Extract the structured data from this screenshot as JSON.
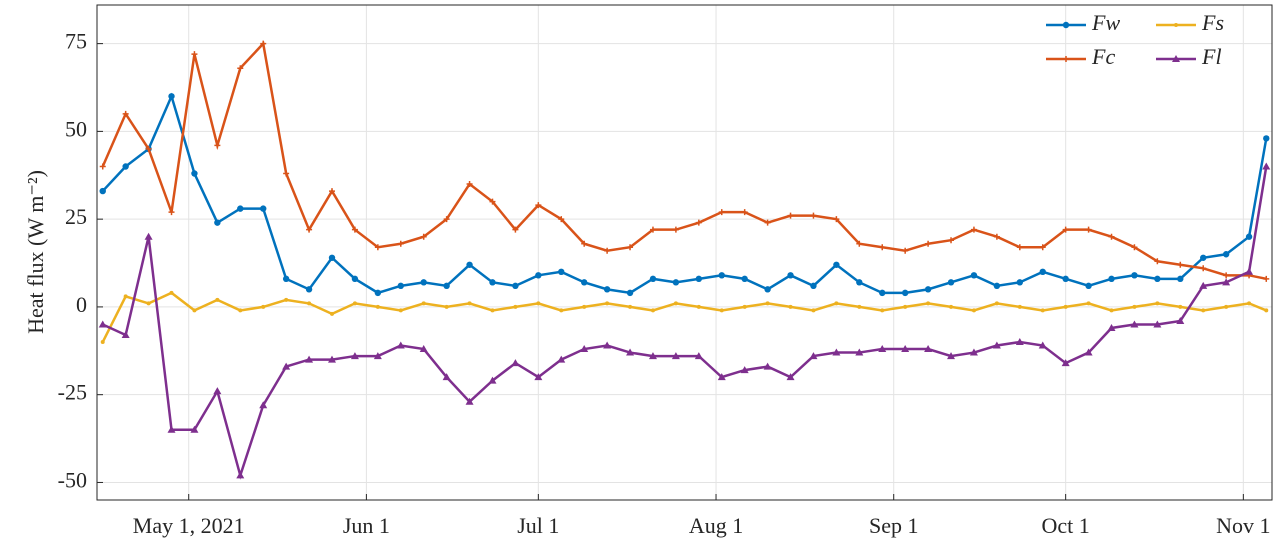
{
  "chart_data": {
    "type": "line",
    "y_label": "Heat flux (W m⁻²)",
    "x": [
      "2021-04-16",
      "2021-04-20",
      "2021-04-24",
      "2021-04-28",
      "2021-05-02",
      "2021-05-06",
      "2021-05-10",
      "2021-05-14",
      "2021-05-18",
      "2021-05-22",
      "2021-05-26",
      "2021-05-30",
      "2021-06-03",
      "2021-06-07",
      "2021-06-11",
      "2021-06-15",
      "2021-06-19",
      "2021-06-23",
      "2021-06-27",
      "2021-07-01",
      "2021-07-05",
      "2021-07-09",
      "2021-07-13",
      "2021-07-17",
      "2021-07-21",
      "2021-07-25",
      "2021-07-29",
      "2021-08-02",
      "2021-08-06",
      "2021-08-10",
      "2021-08-14",
      "2021-08-18",
      "2021-08-22",
      "2021-08-26",
      "2021-08-30",
      "2021-09-03",
      "2021-09-07",
      "2021-09-11",
      "2021-09-15",
      "2021-09-19",
      "2021-09-23",
      "2021-09-27",
      "2021-10-01",
      "2021-10-05",
      "2021-10-09",
      "2021-10-13",
      "2021-10-17",
      "2021-10-21",
      "2021-10-25",
      "2021-10-29",
      "2021-11-02",
      "2021-11-05"
    ],
    "series": [
      {
        "name": "Fw",
        "color": "#0072bd",
        "marker": "circle",
        "values": [
          33,
          40,
          45,
          60,
          38,
          24,
          28,
          28,
          8,
          5,
          14,
          8,
          4,
          6,
          7,
          6,
          12,
          7,
          6,
          9,
          10,
          7,
          5,
          4,
          8,
          7,
          8,
          9,
          8,
          5,
          9,
          6,
          12,
          7,
          4,
          4,
          5,
          7,
          9,
          6,
          7,
          10,
          8,
          6,
          8,
          9,
          8,
          8,
          14,
          15,
          20,
          48
        ]
      },
      {
        "name": "Fs",
        "color": "#edb120",
        "marker": "dot",
        "values": [
          -10,
          3,
          1,
          4,
          -1,
          2,
          -1,
          0,
          2,
          1,
          -2,
          1,
          0,
          -1,
          1,
          0,
          1,
          -1,
          0,
          1,
          -1,
          0,
          1,
          0,
          -1,
          1,
          0,
          -1,
          0,
          1,
          0,
          -1,
          1,
          0,
          -1,
          0,
          1,
          0,
          -1,
          1,
          0,
          -1,
          0,
          1,
          -1,
          0,
          1,
          0,
          -1,
          0,
          1,
          -1
        ]
      },
      {
        "name": "Fc",
        "color": "#d95319",
        "marker": "plus",
        "values": [
          40,
          55,
          45,
          27,
          72,
          46,
          68,
          75,
          38,
          22,
          33,
          22,
          17,
          18,
          20,
          25,
          35,
          30,
          22,
          29,
          25,
          18,
          16,
          17,
          22,
          22,
          24,
          27,
          27,
          24,
          26,
          26,
          25,
          18,
          17,
          16,
          18,
          19,
          22,
          20,
          17,
          17,
          22,
          22,
          20,
          17,
          13,
          12,
          11,
          9,
          9,
          8
        ]
      },
      {
        "name": "Fl",
        "color": "#7e2f8e",
        "marker": "triangle",
        "values": [
          -5,
          -8,
          20,
          -35,
          -35,
          -24,
          -48,
          -28,
          -17,
          -15,
          -15,
          -14,
          -14,
          -11,
          -12,
          -20,
          -27,
          -21,
          -16,
          -20,
          -15,
          -12,
          -11,
          -13,
          -14,
          -14,
          -14,
          -20,
          -18,
          -17,
          -20,
          -14,
          -13,
          -13,
          -12,
          -12,
          -12,
          -14,
          -13,
          -11,
          -10,
          -11,
          -16,
          -13,
          -6,
          -5,
          -5,
          -4,
          6,
          7,
          10,
          40
        ]
      }
    ],
    "xlim": [
      "2021-04-15",
      "2021-11-06"
    ],
    "xticks": [
      {
        "value": "2021-05-01",
        "label": "May 1, 2021"
      },
      {
        "value": "2021-06-01",
        "label": "Jun 1"
      },
      {
        "value": "2021-07-01",
        "label": "Jul 1"
      },
      {
        "value": "2021-08-01",
        "label": "Aug 1"
      },
      {
        "value": "2021-09-01",
        "label": "Sep 1"
      },
      {
        "value": "2021-10-01",
        "label": "Oct 1"
      },
      {
        "value": "2021-11-01",
        "label": "Nov 1"
      }
    ],
    "ylim": [
      -55,
      86
    ],
    "yticks": [
      -50,
      -25,
      0,
      25,
      50,
      75
    ],
    "grid": true,
    "legend_position": "upper right"
  }
}
